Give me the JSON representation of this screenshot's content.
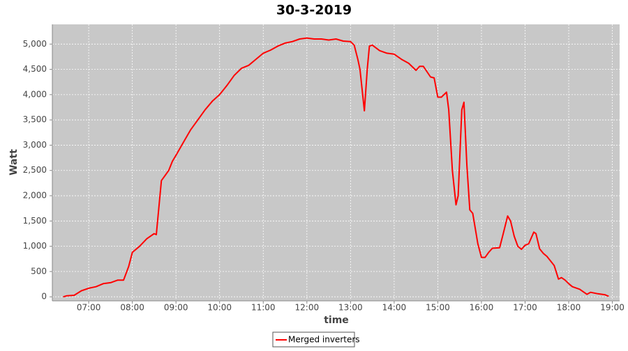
{
  "chart_data": {
    "type": "line",
    "title": "30-3-2019",
    "x_label": "time",
    "y_label": "Watt",
    "x": [
      "06:25",
      "06:30",
      "06:40",
      "06:50",
      "07:00",
      "07:10",
      "07:20",
      "07:30",
      "07:40",
      "07:48",
      "07:55",
      "08:00",
      "08:10",
      "08:20",
      "08:30",
      "08:33",
      "08:36",
      "08:40",
      "08:45",
      "08:50",
      "08:55",
      "09:00",
      "09:10",
      "09:20",
      "09:30",
      "09:40",
      "09:50",
      "10:00",
      "10:10",
      "10:20",
      "10:30",
      "10:40",
      "10:50",
      "11:00",
      "11:10",
      "11:20",
      "11:30",
      "11:40",
      "11:50",
      "12:00",
      "12:10",
      "12:20",
      "12:30",
      "12:40",
      "12:50",
      "13:00",
      "13:05",
      "13:10",
      "13:13",
      "13:19",
      "13:23",
      "13:26",
      "13:30",
      "13:40",
      "13:50",
      "14:00",
      "14:10",
      "14:20",
      "14:30",
      "14:35",
      "14:40",
      "14:50",
      "14:55",
      "15:00",
      "15:05",
      "15:12",
      "15:15",
      "15:20",
      "15:25",
      "15:28",
      "15:33",
      "15:36",
      "15:40",
      "15:44",
      "15:48",
      "15:55",
      "16:00",
      "16:05",
      "16:10",
      "16:15",
      "16:25",
      "16:30",
      "16:36",
      "16:40",
      "16:45",
      "16:50",
      "16:55",
      "17:00",
      "17:05",
      "17:12",
      "17:15",
      "17:20",
      "17:25",
      "17:30",
      "17:40",
      "17:46",
      "17:50",
      "17:55",
      "18:00",
      "18:05",
      "18:15",
      "18:25",
      "18:30",
      "18:40",
      "18:50",
      "18:55"
    ],
    "series": [
      {
        "name": "Merged inverters",
        "color": "#ff0000",
        "values": [
          0,
          20,
          30,
          120,
          170,
          200,
          260,
          280,
          330,
          330,
          600,
          880,
          1000,
          1150,
          1250,
          1230,
          1700,
          2300,
          2400,
          2500,
          2680,
          2800,
          3050,
          3300,
          3500,
          3700,
          3870,
          4000,
          4180,
          4380,
          4520,
          4580,
          4700,
          4820,
          4880,
          4960,
          5020,
          5050,
          5100,
          5120,
          5100,
          5100,
          5080,
          5100,
          5060,
          5050,
          4980,
          4700,
          4500,
          3680,
          4500,
          4960,
          4980,
          4870,
          4820,
          4800,
          4700,
          4620,
          4480,
          4560,
          4560,
          4350,
          4330,
          3950,
          3950,
          4050,
          3700,
          2500,
          1820,
          2000,
          3700,
          3850,
          2600,
          1720,
          1650,
          1050,
          780,
          780,
          880,
          960,
          970,
          1250,
          1600,
          1500,
          1200,
          1000,
          940,
          1020,
          1050,
          1280,
          1250,
          950,
          860,
          800,
          620,
          350,
          380,
          330,
          260,
          200,
          150,
          50,
          90,
          60,
          40,
          10
        ]
      }
    ],
    "xlim": [
      "06:10",
      "19:10"
    ],
    "xticks": [
      "07:00",
      "08:00",
      "09:00",
      "10:00",
      "11:00",
      "12:00",
      "13:00",
      "14:00",
      "15:00",
      "16:00",
      "17:00",
      "18:00",
      "19:00"
    ],
    "ylim": [
      -80,
      5390
    ],
    "yticks": [
      0,
      500,
      {
        "value": 1000,
        "label": "1,000"
      },
      {
        "value": 1500,
        "label": "1,500"
      },
      {
        "value": 2000,
        "label": "2,000"
      },
      {
        "value": 2500,
        "label": "2,500"
      },
      {
        "value": 3000,
        "label": "3,000"
      },
      {
        "value": 3500,
        "label": "3,500"
      },
      {
        "value": 4000,
        "label": "4,000"
      },
      {
        "value": 4500,
        "label": "4,500"
      },
      {
        "value": 5000,
        "label": "5,000"
      }
    ],
    "grid": true
  }
}
